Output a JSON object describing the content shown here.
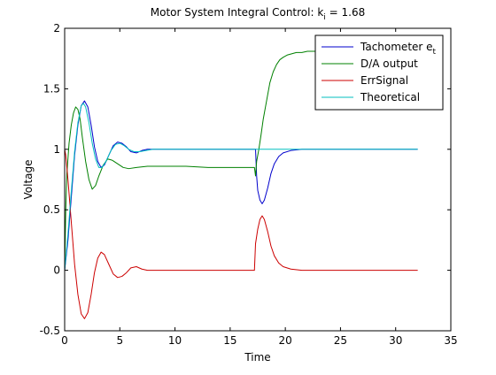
{
  "chart_data": {
    "type": "line",
    "title": "Motor System Integral Control: k",
    "title_subscript": "i",
    "title_suffix": " = 1.68",
    "xlabel": "Time",
    "ylabel": "Voltage",
    "xlim": [
      0,
      35
    ],
    "ylim": [
      -0.5,
      2
    ],
    "xticks": [
      0,
      5,
      10,
      15,
      20,
      25,
      30,
      35
    ],
    "yticks": [
      -0.5,
      0,
      0.5,
      1,
      1.5,
      2
    ],
    "xtick_labels": [
      "0",
      "5",
      "10",
      "15",
      "20",
      "25",
      "30",
      "35"
    ],
    "ytick_labels": [
      "-0.5",
      "0",
      "0.5",
      "1",
      "1.5",
      "2"
    ],
    "grid": false,
    "legend_position": "top-right",
    "series": [
      {
        "name": "Tachometer e",
        "name_subscript": "t",
        "color": "#0000cc",
        "x": [
          0,
          0.3,
          0.6,
          0.9,
          1.2,
          1.5,
          1.8,
          2.1,
          2.4,
          2.7,
          3.0,
          3.3,
          3.6,
          4.0,
          4.4,
          4.8,
          5.2,
          5.6,
          6.0,
          6.5,
          7.0,
          7.5,
          8.0,
          9,
          10,
          12,
          14,
          16,
          17.3,
          17.4,
          17.5,
          17.7,
          17.9,
          18.1,
          18.4,
          18.7,
          19.0,
          19.4,
          19.8,
          20.5,
          21.5,
          23,
          26,
          29,
          32
        ],
        "y": [
          0,
          0.25,
          0.6,
          0.95,
          1.2,
          1.36,
          1.4,
          1.35,
          1.2,
          1.02,
          0.9,
          0.85,
          0.87,
          0.95,
          1.03,
          1.06,
          1.05,
          1.02,
          0.98,
          0.97,
          0.99,
          1.0,
          1.0,
          1.0,
          1.0,
          1.0,
          1.0,
          1.0,
          1.0,
          0.78,
          0.66,
          0.58,
          0.55,
          0.58,
          0.68,
          0.8,
          0.88,
          0.94,
          0.97,
          0.99,
          1.0,
          1.0,
          1.0,
          1.0,
          1.0
        ]
      },
      {
        "name": "D/A output",
        "color": "#008000",
        "x": [
          0,
          0.1,
          0.2,
          0.4,
          0.6,
          0.8,
          1.0,
          1.2,
          1.4,
          1.6,
          1.9,
          2.2,
          2.5,
          2.8,
          3.1,
          3.5,
          3.9,
          4.3,
          4.8,
          5.3,
          5.8,
          6.5,
          7.5,
          9,
          11,
          13,
          15,
          17.2,
          17.3,
          17.4,
          17.6,
          17.8,
          18.0,
          18.3,
          18.6,
          18.9,
          19.2,
          19.5,
          19.8,
          20.2,
          20.6,
          21,
          21.5,
          22,
          23,
          25,
          28,
          32
        ],
        "y": [
          0,
          0.5,
          0.8,
          1.05,
          1.2,
          1.3,
          1.35,
          1.33,
          1.25,
          1.1,
          0.9,
          0.75,
          0.67,
          0.7,
          0.78,
          0.87,
          0.92,
          0.91,
          0.88,
          0.85,
          0.84,
          0.85,
          0.86,
          0.86,
          0.86,
          0.85,
          0.85,
          0.85,
          0.78,
          0.9,
          1.0,
          1.12,
          1.25,
          1.4,
          1.55,
          1.64,
          1.7,
          1.74,
          1.76,
          1.78,
          1.79,
          1.8,
          1.8,
          1.81,
          1.81,
          1.81,
          1.81,
          1.81
        ]
      },
      {
        "name": "ErrSignal",
        "color": "#cc0000",
        "x": [
          0,
          0.1,
          0.3,
          0.6,
          0.9,
          1.2,
          1.5,
          1.8,
          2.1,
          2.4,
          2.7,
          3.0,
          3.3,
          3.6,
          4.0,
          4.4,
          4.8,
          5.2,
          5.6,
          6.0,
          6.5,
          7.0,
          7.5,
          8,
          9,
          10,
          12,
          14,
          16,
          17.2,
          17.3,
          17.5,
          17.7,
          17.9,
          18.1,
          18.4,
          18.7,
          19.0,
          19.4,
          19.8,
          20.5,
          21.5,
          23,
          26,
          29,
          32
        ],
        "y": [
          1.0,
          0.95,
          0.75,
          0.4,
          0.05,
          -0.2,
          -0.36,
          -0.4,
          -0.35,
          -0.2,
          -0.02,
          0.1,
          0.15,
          0.13,
          0.05,
          -0.03,
          -0.06,
          -0.05,
          -0.02,
          0.02,
          0.03,
          0.01,
          0.0,
          0.0,
          0.0,
          0.0,
          0.0,
          0.0,
          0.0,
          0.0,
          0.22,
          0.34,
          0.42,
          0.45,
          0.42,
          0.32,
          0.2,
          0.12,
          0.06,
          0.03,
          0.01,
          0.0,
          0.0,
          0.0,
          0.0,
          0.0
        ]
      },
      {
        "name": "Theoretical",
        "color": "#00bfbf",
        "x": [
          0,
          0.3,
          0.6,
          0.9,
          1.2,
          1.5,
          1.7,
          1.9,
          2.2,
          2.5,
          2.8,
          3.1,
          3.4,
          3.8,
          4.2,
          4.6,
          5.0,
          5.4,
          5.8,
          6.3,
          6.8,
          7.4,
          8,
          9,
          10,
          12,
          15,
          18,
          22,
          26,
          30,
          32
        ],
        "y": [
          0,
          0.3,
          0.65,
          0.98,
          1.22,
          1.36,
          1.38,
          1.35,
          1.22,
          1.05,
          0.92,
          0.85,
          0.85,
          0.91,
          0.99,
          1.04,
          1.05,
          1.03,
          1.0,
          0.98,
          0.98,
          0.99,
          1.0,
          1.0,
          1.0,
          1.0,
          1.0,
          1.0,
          1.0,
          1.0,
          1.0,
          1.0
        ]
      }
    ]
  }
}
